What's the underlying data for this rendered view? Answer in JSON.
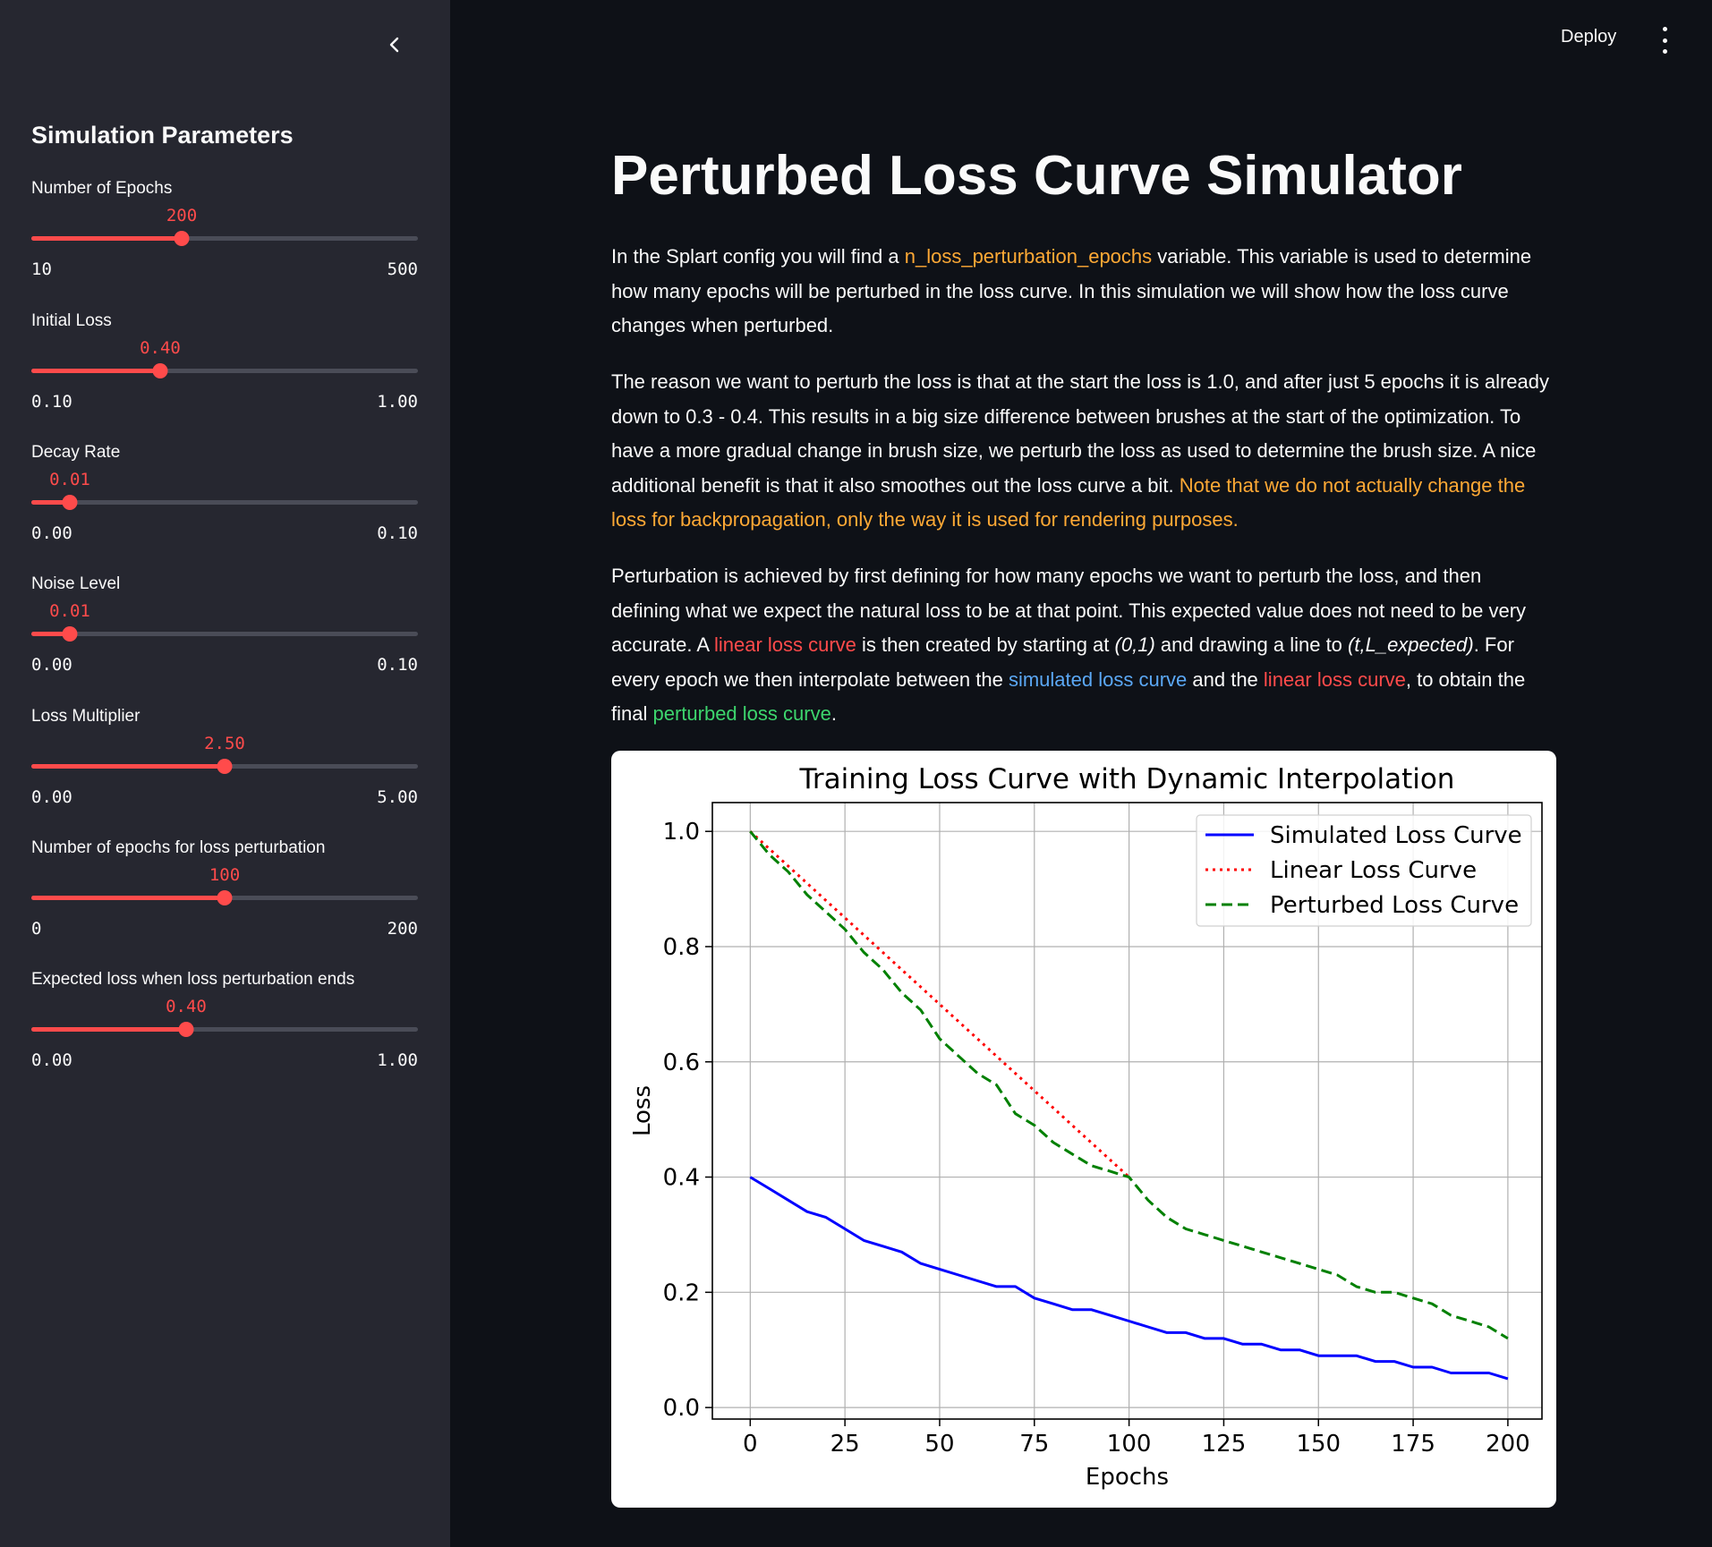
{
  "sidebar": {
    "title": "Simulation Parameters",
    "sliders": [
      {
        "label": "Number of Epochs",
        "value": "200",
        "min": "10",
        "max": "500",
        "fraction": 0.388
      },
      {
        "label": "Initial Loss",
        "value": "0.40",
        "min": "0.10",
        "max": "1.00",
        "fraction": 0.333
      },
      {
        "label": "Decay Rate",
        "value": "0.01",
        "min": "0.00",
        "max": "0.10",
        "fraction": 0.1
      },
      {
        "label": "Noise Level",
        "value": "0.01",
        "min": "0.00",
        "max": "0.10",
        "fraction": 0.1
      },
      {
        "label": "Loss Multiplier",
        "value": "2.50",
        "min": "0.00",
        "max": "5.00",
        "fraction": 0.5
      },
      {
        "label": "Number of epochs for loss perturbation",
        "value": "100",
        "min": "0",
        "max": "200",
        "fraction": 0.5
      },
      {
        "label": "Expected loss when loss perturbation ends",
        "value": "0.40",
        "min": "0.00",
        "max": "1.00",
        "fraction": 0.4
      }
    ]
  },
  "header": {
    "deploy_label": "Deploy"
  },
  "main": {
    "title": "Perturbed Loss Curve Simulator",
    "p1": {
      "a": "In the Splart config you will find a ",
      "b": "n_loss_perturbation_epochs",
      "c": " variable. This variable is used to determine how many epochs will be perturbed in the loss curve. In this simulation we will show how the loss curve changes when perturbed."
    },
    "p2": {
      "a": "The reason we want to perturb the loss is that at the start the loss is 1.0, and after just 5 epochs it is already down to 0.3 - 0.4. This results in a big size difference between brushes at the start of the optimization. To have a more gradual change in brush size, we perturb the loss as used to determine the brush size. A nice additional benefit is that it also smoothes out the loss curve a bit. ",
      "b": "Note that we do not actually change the loss for backpropagation, only the way it is used for rendering purposes."
    },
    "p3": {
      "a": "Perturbation is achieved by first defining for how many epochs we want to perturb the loss, and then defining what we expect the natural loss to be at that point. This expected value does not need to be very accurate. A ",
      "b": "linear loss curve",
      "c": " is then created by starting at ",
      "d": "(0,1)",
      "e": " and drawing a line to ",
      "f": "(t,L_expected)",
      "g": ". For every epoch we then interpolate between the ",
      "h": "simulated loss curve",
      "i": " and the ",
      "j": "linear loss curve",
      "k": ", to obtain the final ",
      "l": "perturbed loss curve",
      "m": "."
    }
  },
  "chart_data": {
    "type": "line",
    "title": "Training Loss Curve with Dynamic Interpolation",
    "xlabel": "Epochs",
    "ylabel": "Loss",
    "xlim": [
      -10,
      209
    ],
    "ylim": [
      -0.02,
      1.05
    ],
    "xticks": [
      0,
      25,
      50,
      75,
      100,
      125,
      150,
      175,
      200
    ],
    "yticks": [
      0.0,
      0.2,
      0.4,
      0.6,
      0.8,
      1.0
    ],
    "xtick_labels": [
      "0",
      "25",
      "50",
      "75",
      "100",
      "125",
      "150",
      "175",
      "200"
    ],
    "ytick_labels": [
      "0.0",
      "0.2",
      "0.4",
      "0.6",
      "0.8",
      "1.0"
    ],
    "grid": true,
    "legend_position": "top-right",
    "series": [
      {
        "name": "Simulated Loss Curve",
        "color": "#0000ff",
        "style": "solid",
        "x": [
          0,
          5,
          10,
          15,
          20,
          25,
          30,
          35,
          40,
          45,
          50,
          55,
          60,
          65,
          70,
          75,
          80,
          85,
          90,
          95,
          100,
          105,
          110,
          115,
          120,
          125,
          130,
          135,
          140,
          145,
          150,
          155,
          160,
          165,
          170,
          175,
          180,
          185,
          190,
          195,
          200
        ],
        "y": [
          0.4,
          0.38,
          0.36,
          0.34,
          0.33,
          0.31,
          0.29,
          0.28,
          0.27,
          0.25,
          0.24,
          0.23,
          0.22,
          0.21,
          0.21,
          0.19,
          0.18,
          0.17,
          0.17,
          0.16,
          0.15,
          0.14,
          0.13,
          0.13,
          0.12,
          0.12,
          0.11,
          0.11,
          0.1,
          0.1,
          0.09,
          0.09,
          0.09,
          0.08,
          0.08,
          0.07,
          0.07,
          0.06,
          0.06,
          0.06,
          0.05
        ]
      },
      {
        "name": "Linear Loss Curve",
        "color": "#ff0000",
        "style": "dotted",
        "x": [
          0,
          100
        ],
        "y": [
          1.0,
          0.4
        ]
      },
      {
        "name": "Perturbed Loss Curve",
        "color": "#008000",
        "style": "dashed",
        "x": [
          0,
          5,
          10,
          15,
          20,
          25,
          30,
          35,
          40,
          45,
          50,
          55,
          60,
          65,
          70,
          75,
          80,
          85,
          90,
          95,
          100,
          105,
          110,
          115,
          120,
          125,
          130,
          135,
          140,
          145,
          150,
          155,
          160,
          165,
          170,
          175,
          180,
          185,
          190,
          195,
          200
        ],
        "y": [
          1.0,
          0.96,
          0.93,
          0.89,
          0.86,
          0.83,
          0.79,
          0.76,
          0.72,
          0.69,
          0.64,
          0.61,
          0.58,
          0.56,
          0.51,
          0.49,
          0.46,
          0.44,
          0.42,
          0.41,
          0.4,
          0.36,
          0.33,
          0.31,
          0.3,
          0.29,
          0.28,
          0.27,
          0.26,
          0.25,
          0.24,
          0.23,
          0.21,
          0.2,
          0.2,
          0.19,
          0.18,
          0.16,
          0.15,
          0.14,
          0.12
        ]
      }
    ]
  }
}
